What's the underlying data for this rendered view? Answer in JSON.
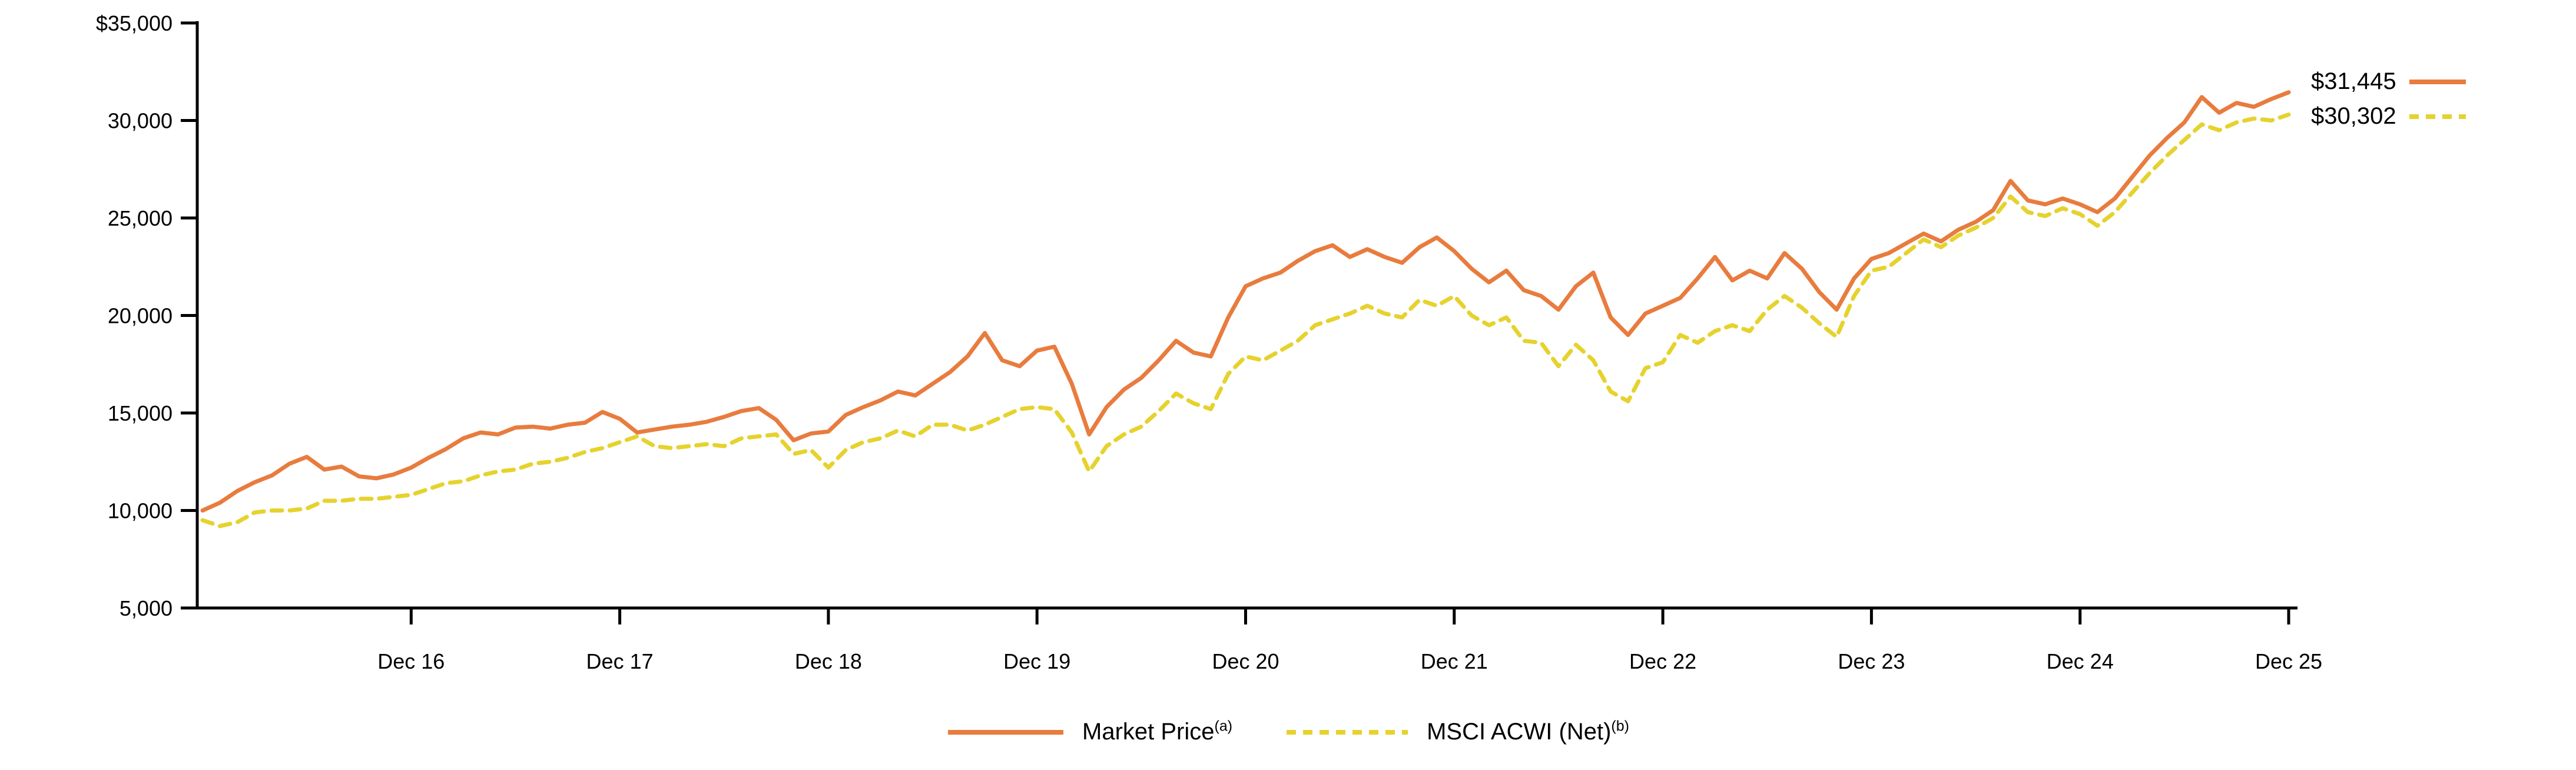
{
  "chart_data": {
    "type": "line",
    "title": "",
    "xlabel": "",
    "ylabel": "",
    "grid": false,
    "legend_position": "bottom-center",
    "ylim": [
      5000,
      35000
    ],
    "points_frequency": "monthly",
    "y_ticks": [
      {
        "label": "$35,000",
        "value": 35000
      },
      {
        "label": "30,000",
        "value": 30000
      },
      {
        "label": "25,000",
        "value": 25000
      },
      {
        "label": "20,000",
        "value": 20000
      },
      {
        "label": "15,000",
        "value": 15000
      },
      {
        "label": "10,000",
        "value": 10000
      },
      {
        "label": "5,000",
        "value": 5000
      }
    ],
    "x_ticks": [
      {
        "label": "Dec 16",
        "month_index": 12
      },
      {
        "label": "Dec 17",
        "month_index": 24
      },
      {
        "label": "Dec 18",
        "month_index": 36
      },
      {
        "label": "Dec 19",
        "month_index": 48
      },
      {
        "label": "Dec 20",
        "month_index": 60
      },
      {
        "label": "Dec 21",
        "month_index": 72
      },
      {
        "label": "Dec 22",
        "month_index": 84
      },
      {
        "label": "Dec 23",
        "month_index": 96
      },
      {
        "label": "Dec 24",
        "month_index": 108
      },
      {
        "label": "Dec 25",
        "month_index": 120
      }
    ],
    "series": [
      {
        "name": "Market Price",
        "footnote": "(a)",
        "end_label": "$31,445",
        "end_value": 31445,
        "color": "#E87C3E",
        "style": "solid",
        "values": [
          10000,
          10400,
          11000,
          11450,
          11800,
          12400,
          12750,
          12100,
          12250,
          11750,
          11650,
          11850,
          12200,
          12700,
          13150,
          13700,
          14000,
          13900,
          14250,
          14300,
          14200,
          14400,
          14500,
          15050,
          14700,
          14000,
          14150,
          14300,
          14400,
          14550,
          14800,
          15100,
          15250,
          14650,
          13600,
          13950,
          14050,
          14900,
          15300,
          15650,
          16100,
          15900,
          16500,
          17100,
          17900,
          19100,
          17700,
          17400,
          18200,
          18400,
          16500,
          13900,
          15300,
          16200,
          16800,
          17700,
          18700,
          18100,
          17900,
          19900,
          21500,
          21900,
          22200,
          22800,
          23300,
          23600,
          23000,
          23400,
          23000,
          22700,
          23500,
          24000,
          23300,
          22400,
          21700,
          22300,
          21300,
          21000,
          20300,
          21500,
          22200,
          19900,
          19000,
          20100,
          20500,
          20900,
          21900,
          23000,
          21800,
          22300,
          21900,
          23200,
          22400,
          21200,
          20300,
          21900,
          22900,
          23200,
          23700,
          24200,
          23800,
          24400,
          24800,
          25400,
          26900,
          25900,
          25700,
          26000,
          25700,
          25300,
          26000,
          27100,
          28200,
          29100,
          29900,
          31200,
          30400,
          30900,
          30700,
          31100,
          31445
        ]
      },
      {
        "name": "MSCI ACWI (Net)",
        "footnote": "(b)",
        "end_label": "$30,302",
        "end_value": 30302,
        "color": "#E6D22E",
        "style": "dashed",
        "values": [
          9500,
          9200,
          9400,
          9900,
          10000,
          10000,
          10100,
          10500,
          10500,
          10600,
          10600,
          10700,
          10800,
          11100,
          11400,
          11500,
          11800,
          12000,
          12100,
          12400,
          12500,
          12700,
          13000,
          13200,
          13500,
          13800,
          13300,
          13200,
          13300,
          13400,
          13300,
          13700,
          13800,
          13900,
          12900,
          13100,
          12200,
          13100,
          13500,
          13700,
          14100,
          13800,
          14400,
          14400,
          14100,
          14400,
          14800,
          15200,
          15300,
          15200,
          14000,
          12000,
          13300,
          13900,
          14300,
          15100,
          16000,
          15500,
          15200,
          17000,
          17900,
          17700,
          18200,
          18700,
          19500,
          19800,
          20100,
          20500,
          20100,
          19900,
          20800,
          20500,
          21000,
          20000,
          19500,
          19900,
          18700,
          18600,
          17400,
          18500,
          17700,
          16100,
          15600,
          17300,
          17600,
          19000,
          18600,
          19200,
          19500,
          19200,
          20300,
          21000,
          20400,
          19600,
          18900,
          21000,
          22300,
          22500,
          23200,
          23900,
          23500,
          24100,
          24500,
          25000,
          26100,
          25300,
          25100,
          25500,
          25200,
          24600,
          25300,
          26300,
          27300,
          28200,
          29000,
          29800,
          29500,
          29900,
          30100,
          30000,
          30302
        ]
      }
    ]
  }
}
